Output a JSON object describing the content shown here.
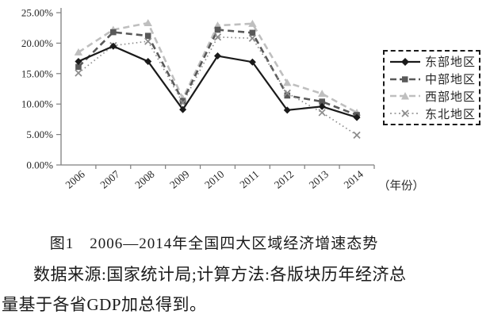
{
  "caption": "图1　2006—2014年全国四大区域经济增速态势",
  "note_lines": [
    "数据来源:国家统计局;计算方法:各版块历年经济总",
    "量基于各省GDP加总得到。"
  ],
  "chart_data": {
    "type": "line",
    "title": "",
    "x_axis_label": "（年份）",
    "xlabel": "年份",
    "ylabel": "",
    "categories": [
      "2006",
      "2007",
      "2008",
      "2009",
      "2010",
      "2011",
      "2012",
      "2013",
      "2014"
    ],
    "y_ticks": [
      "25.00%",
      "20.00%",
      "15.00%",
      "10.00%",
      "5.00%",
      "0.00%"
    ],
    "ylim": [
      0,
      25
    ],
    "grid": false,
    "legend_position": "right",
    "axis_color": "#7f7f7f",
    "series": [
      {
        "id": "east",
        "name": "东部地区",
        "marker": "diamond",
        "line_style": "solid",
        "color": "#1a1a1a",
        "values": [
          17.0,
          19.5,
          17.0,
          9.1,
          17.9,
          16.9,
          9.0,
          9.6,
          7.8
        ]
      },
      {
        "id": "central",
        "name": "中部地区",
        "marker": "square",
        "line_style": "dashed",
        "color": "#595959",
        "values": [
          16.1,
          21.8,
          21.2,
          10.5,
          22.2,
          21.7,
          11.4,
          10.4,
          8.2
        ]
      },
      {
        "id": "west",
        "name": "西部地区",
        "marker": "triangle",
        "line_style": "dashed",
        "color": "#bfbfbf",
        "values": [
          18.5,
          22.2,
          23.3,
          10.9,
          22.9,
          23.2,
          13.5,
          11.7,
          8.6
        ]
      },
      {
        "id": "northeast",
        "name": "东北地区",
        "marker": "x",
        "line_style": "dashdot",
        "color": "#8c8c8c",
        "values": [
          15.1,
          19.6,
          20.3,
          10.2,
          21.0,
          20.8,
          11.8,
          8.6,
          4.9
        ]
      }
    ]
  }
}
